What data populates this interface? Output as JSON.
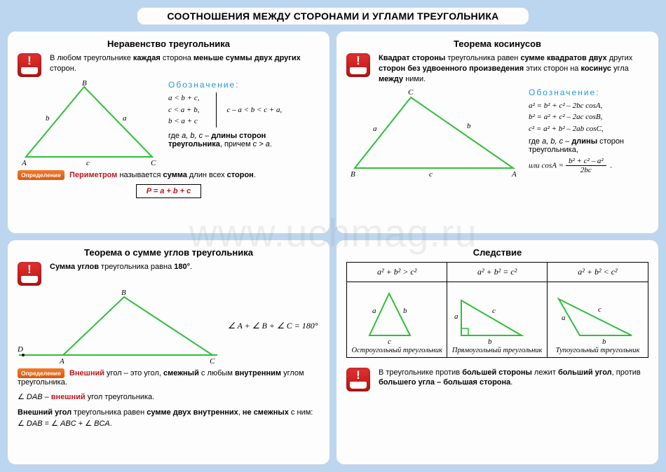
{
  "page_title": "СООТНОШЕНИЯ МЕЖДУ СТОРОНАМИ И УГЛАМИ ТРЕУГОЛЬНИКА",
  "watermark": "www.uchmag.ru",
  "colors": {
    "page_bg": "#bcd6f0",
    "panel_bg": "#fdfdfd",
    "panel_border": "#c7d3e2",
    "triangle_stroke": "#2fbf3a",
    "accent_red": "#c0161a",
    "notation_blue": "#1f9ad6",
    "def_badge_bg": "#e4671c",
    "alert_bg": "#d11e1e"
  },
  "panels": {
    "p1": {
      "title": "Неравенство треугольника",
      "lead_html": "В любом треугольнике <b>каждая</b> сторона <b>меньше суммы двух других</b> сторон.",
      "notation_label": "Обозначение:",
      "ineq1": "a < b + c,",
      "ineq2": "c < a + b,",
      "ineq3": "b < a + c",
      "combined": "c – a < b < c + a,",
      "where": "где <i>a, b, c</i> – <b>длины сторон треугольника</b>, причем <i>c > a</i>.",
      "def_badge": "Определение",
      "perimeter_text_html": "<b class='red'>Периметром</b> называется <b>сумма</b> длин всех <b>сторон</b>.",
      "formula": "P = a + b + c",
      "triangle": {
        "A": [
          10,
          110
        ],
        "B": [
          95,
          8
        ],
        "C": [
          190,
          110
        ],
        "labels": {
          "A": "A",
          "B": "B",
          "C": "C",
          "a": "a",
          "b": "b",
          "c": "c"
        }
      }
    },
    "p2": {
      "title": "Теорема косинусов",
      "lead_html": "<b>Квадрат стороны</b> треугольника равен <b>сумме квадратов двух</b> других <b>сторон без удвоенного произведения</b> этих сторон на <b>косинус</b> угла <b>между</b> ними.",
      "notation_label": "Обозначение:",
      "f1": "a² = b² + c² – 2bc cosA,",
      "f2": "b² = a² + c² – 2ac cosB,",
      "f3": "c² = a² + b² – 2ab cosC,",
      "where": "где <i>a, b, c</i> – <b>длины</b> сторон треугольника,",
      "cos_lhs": "или cosA =",
      "cos_num": "b² + c² – a²",
      "cos_den": "2bc",
      "triangle": {
        "A": [
          235,
          112
        ],
        "B": [
          10,
          112
        ],
        "C": [
          90,
          12
        ],
        "labels": {
          "A": "A",
          "B": "B",
          "C": "C",
          "a": "a",
          "b": "b",
          "c": "c"
        }
      }
    },
    "p3": {
      "title": "Теорема о сумме углов треугольника",
      "lead_html": "<b>Сумма углов</b> треугольника равна <b>180°</b>.",
      "angle_sum": "∠ A + ∠ B + ∠ C = 180°",
      "def_badge": "Определение",
      "ext_def_html": "<b class='red'>Внешний</b> угол – это угол, <b>смежный</b> с любым <b>внутренним</b> углом треугольника.",
      "ext_dab_html": "∠ <i>DAB</i> – <b class='red'>внешний</b> угол треугольника.",
      "ext_sum_html": "<b>Внешний угол</b> треугольника равен <b>сумме двух внутренних</b>, <b>не смежных</b> с ним:&nbsp;&nbsp; ∠ <i>DAB</i> = ∠ <i>ABC</i> + ∠ <i>BCA</i>.",
      "triangle": {
        "D": [
          5,
          95
        ],
        "A": [
          62,
          95
        ],
        "B": [
          150,
          10
        ],
        "C": [
          275,
          95
        ]
      }
    },
    "p4": {
      "title": "Следствие",
      "cases": [
        {
          "cond": "a² + b² > c²",
          "caption": "Остроугольный треугольник",
          "type": "acute"
        },
        {
          "cond": "a² + b² = c²",
          "caption": "Прямоугольный треугольник",
          "type": "right"
        },
        {
          "cond": "a² + b² < c²",
          "caption": "Тупоугольный треугольник",
          "type": "obtuse"
        }
      ],
      "footer_html": "В треугольнике против <b>большей стороны</b> лежит <b>больший угол</b>, против <b>большего угла – большая сторона</b>."
    }
  }
}
